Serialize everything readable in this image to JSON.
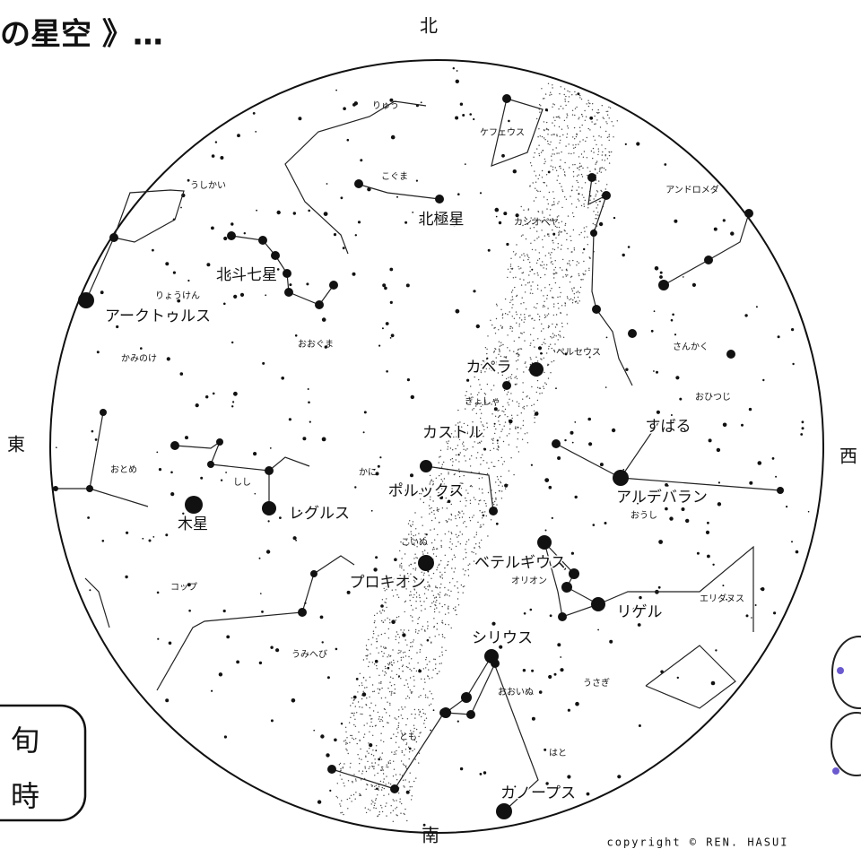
{
  "title": "の星空 》…",
  "directions": {
    "north": "北",
    "south": "南",
    "east": "東",
    "west": "西"
  },
  "labels": [
    "りゅう",
    "ケフェウス",
    "こぐま",
    "アンドロメダ",
    "うしかい",
    "北極星",
    "カシオペヤ",
    "北斗七星",
    "りょうけん",
    "アークトゥルス",
    "おおぐま",
    "ペルセウス",
    "さんかく",
    "かみのけ",
    "カペラ",
    "ぎょしゃ",
    "おひつじ",
    "すばる",
    "カストル",
    "おとめ",
    "しし",
    "かに",
    "ポルックス",
    "アルデバラン",
    "おうし",
    "木星",
    "レグルス",
    "こいぬ",
    "ベテルギウス",
    "プロキオン",
    "オリオン",
    "コップ",
    "エリダヌス",
    "リゲル",
    "うみへび",
    "シリウス",
    "おおいぬ",
    "うさぎ",
    "とも",
    "はと",
    "カノープス"
  ],
  "box": {
    "line1": "旬",
    "line2": "時"
  },
  "copyright": "copyright © REN. HASUI"
}
